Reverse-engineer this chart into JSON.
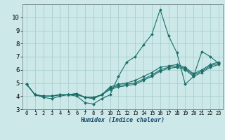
{
  "xlabel": "Humidex (Indice chaleur)",
  "ylabel": "",
  "background_color": "#cce8e8",
  "line_color": "#1a6e6a",
  "grid_color": "#aacfcf",
  "xlim": [
    -0.5,
    23.5
  ],
  "ylim": [
    3,
    11
  ],
  "xticks": [
    0,
    1,
    2,
    3,
    4,
    5,
    6,
    7,
    8,
    9,
    10,
    11,
    12,
    13,
    14,
    15,
    16,
    17,
    18,
    19,
    20,
    21,
    22,
    23
  ],
  "yticks": [
    3,
    4,
    5,
    6,
    7,
    8,
    9,
    10
  ],
  "series": [
    [
      4.9,
      4.1,
      3.9,
      3.8,
      4.0,
      4.1,
      4.0,
      3.5,
      3.4,
      3.8,
      4.1,
      5.5,
      6.6,
      7.0,
      7.9,
      8.7,
      10.6,
      8.6,
      7.3,
      4.9,
      5.5,
      7.4,
      7.0,
      6.5
    ],
    [
      4.9,
      4.1,
      4.0,
      4.0,
      4.1,
      4.1,
      4.1,
      3.9,
      3.8,
      4.1,
      4.5,
      4.7,
      4.8,
      4.9,
      5.2,
      5.5,
      5.9,
      6.1,
      6.2,
      6.0,
      5.5,
      5.8,
      6.2,
      6.4
    ],
    [
      4.9,
      4.1,
      4.0,
      4.0,
      4.1,
      4.1,
      4.2,
      3.9,
      3.9,
      4.1,
      4.6,
      4.8,
      4.9,
      5.0,
      5.3,
      5.6,
      6.0,
      6.2,
      6.3,
      6.1,
      5.6,
      5.9,
      6.3,
      6.5
    ],
    [
      4.9,
      4.1,
      4.0,
      4.0,
      4.1,
      4.1,
      4.2,
      3.9,
      3.9,
      4.1,
      4.7,
      4.9,
      5.0,
      5.2,
      5.5,
      5.8,
      6.2,
      6.3,
      6.4,
      6.2,
      5.7,
      6.0,
      6.4,
      6.6
    ]
  ],
  "xlabel_fontsize": 6.0,
  "tick_fontsize_x": 5.0,
  "tick_fontsize_y": 6.5,
  "marker_size": 2.0,
  "line_width": 0.8
}
